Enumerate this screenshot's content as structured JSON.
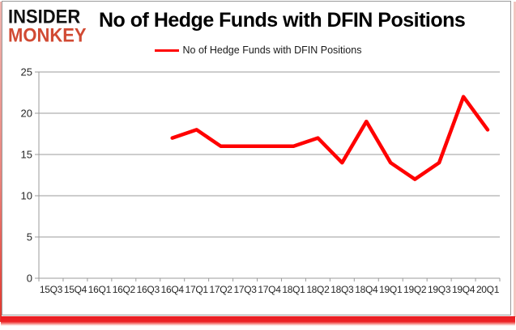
{
  "header": {
    "logo_line1": "INSIDER",
    "logo_line2": "MONKEY",
    "title": "No of Hedge Funds with DFIN Positions"
  },
  "legend": {
    "label": "No of Hedge Funds with DFIN Positions",
    "line_color": "#ff0000"
  },
  "chart_data": {
    "type": "line",
    "title": "No of Hedge Funds with DFIN Positions",
    "categories": [
      "15Q3",
      "15Q4",
      "16Q1",
      "16Q2",
      "16Q3",
      "16Q4",
      "17Q1",
      "17Q2",
      "17Q3",
      "17Q4",
      "18Q1",
      "18Q2",
      "18Q3",
      "18Q4",
      "19Q1",
      "19Q2",
      "19Q3",
      "19Q4",
      "20Q1"
    ],
    "series": [
      {
        "name": "No of Hedge Funds with DFIN Positions",
        "color": "#ff0000",
        "values": [
          null,
          null,
          null,
          null,
          null,
          17,
          18,
          16,
          16,
          16,
          16,
          17,
          14,
          19,
          14,
          12,
          14,
          22,
          18
        ]
      }
    ],
    "xlabel": "",
    "ylabel": "",
    "ylim": [
      0,
      25
    ],
    "yticks": [
      0,
      5,
      10,
      15,
      20,
      25
    ],
    "grid": true,
    "legend_position": "top"
  },
  "colors": {
    "series_line": "#ff0000",
    "gridline": "#9b9b9b",
    "axis_text": "#262626",
    "frame_border": "#9a9a9a",
    "logo_red": "#d14a33",
    "bottom_bar_red": "#ea1c22",
    "background": "#ffffff"
  }
}
